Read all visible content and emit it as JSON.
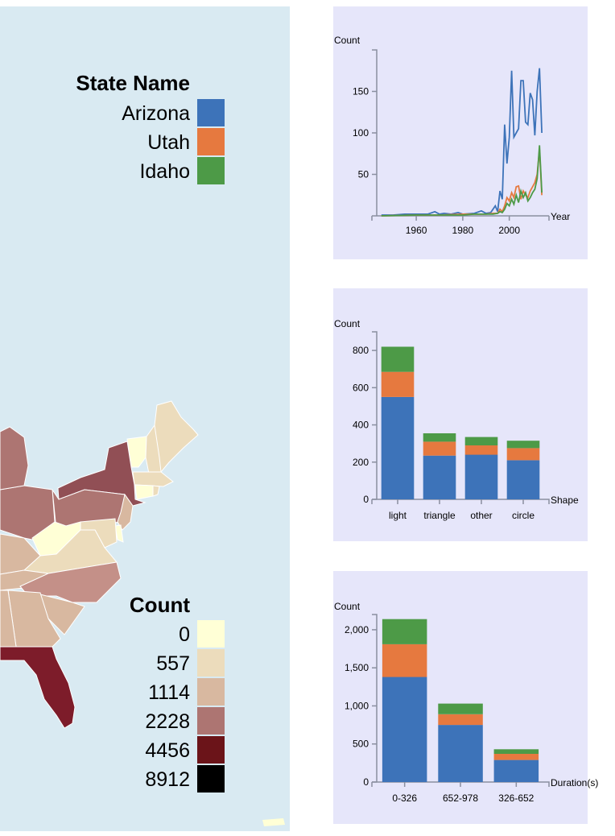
{
  "colors": {
    "map_background": "#d9eaf2",
    "chart_background": "#e6e6fa",
    "axis": "#8a8fa0",
    "series": [
      "#3d73b9",
      "#e6793f",
      "#4d9a47"
    ]
  },
  "state_legend": {
    "title": "State Name",
    "items": [
      {
        "label": "Arizona",
        "color": "#3d73b9"
      },
      {
        "label": "Utah",
        "color": "#e6793f"
      },
      {
        "label": "Idaho",
        "color": "#4d9a47"
      }
    ]
  },
  "count_legend": {
    "title": "Count",
    "items": [
      {
        "label": "0",
        "color": "#ffffd6"
      },
      {
        "label": "557",
        "color": "#ecdcbc"
      },
      {
        "label": "1114",
        "color": "#d8b8a0"
      },
      {
        "label": "2228",
        "color": "#ad7572"
      },
      {
        "label": "4456",
        "color": "#6b1419"
      },
      {
        "label": "8912",
        "color": "#000000"
      }
    ]
  },
  "chart_data": [
    {
      "type": "line",
      "ylabel": "Count",
      "xlabel": "Year",
      "xlim": [
        1943,
        2015
      ],
      "ylim": [
        0,
        200
      ],
      "xticks": [
        1960,
        1980,
        2000
      ],
      "yticks": [
        50,
        100,
        150
      ],
      "series": [
        {
          "name": "Arizona",
          "color": "#3d73b9",
          "x": [
            1945,
            1950,
            1955,
            1960,
            1965,
            1968,
            1970,
            1972,
            1975,
            1978,
            1980,
            1985,
            1988,
            1990,
            1992,
            1994,
            1995,
            1996,
            1997,
            1998,
            1999,
            2000,
            2001,
            2002,
            2003,
            2004,
            2005,
            2006,
            2007,
            2008,
            2009,
            2010,
            2011,
            2012,
            2013,
            2014
          ],
          "y": [
            1,
            1,
            2,
            2,
            2,
            5,
            2,
            3,
            2,
            4,
            2,
            3,
            6,
            3,
            4,
            12,
            5,
            30,
            20,
            110,
            63,
            95,
            175,
            95,
            100,
            105,
            163,
            163,
            113,
            110,
            148,
            140,
            97,
            150,
            178,
            100
          ]
        },
        {
          "name": "Utah",
          "color": "#e6793f",
          "x": [
            1945,
            1960,
            1970,
            1980,
            1985,
            1990,
            1993,
            1995,
            1996,
            1997,
            1998,
            1999,
            2000,
            2001,
            2002,
            2003,
            2004,
            2005,
            2006,
            2007,
            2008,
            2009,
            2010,
            2011,
            2012,
            2013,
            2014
          ],
          "y": [
            0,
            1,
            1,
            2,
            2,
            2,
            3,
            3,
            8,
            5,
            12,
            22,
            18,
            28,
            22,
            35,
            36,
            20,
            30,
            25,
            22,
            30,
            35,
            40,
            50,
            80,
            25
          ]
        },
        {
          "name": "Idaho",
          "color": "#4d9a47",
          "x": [
            1945,
            1960,
            1970,
            1980,
            1985,
            1990,
            1993,
            1995,
            1996,
            1997,
            1998,
            1999,
            2000,
            2001,
            2002,
            2003,
            2004,
            2005,
            2006,
            2007,
            2008,
            2009,
            2010,
            2011,
            2012,
            2013,
            2014
          ],
          "y": [
            0,
            1,
            1,
            1,
            2,
            2,
            2,
            3,
            5,
            4,
            8,
            15,
            12,
            20,
            14,
            25,
            16,
            30,
            22,
            28,
            18,
            22,
            28,
            32,
            45,
            85,
            28
          ]
        }
      ]
    },
    {
      "type": "bar",
      "stacked": true,
      "ylabel": "Count",
      "xlabel": "Shape",
      "ylim": [
        0,
        900
      ],
      "yticks": [
        0,
        200,
        400,
        600,
        800
      ],
      "ytick_labels": [
        "0",
        "200",
        "400",
        "600",
        "800"
      ],
      "categories": [
        "light",
        "triangle",
        "other",
        "circle"
      ],
      "series": [
        {
          "name": "Arizona",
          "color": "#3d73b9",
          "values": [
            550,
            235,
            240,
            210
          ]
        },
        {
          "name": "Utah",
          "color": "#e6793f",
          "values": [
            135,
            75,
            50,
            65
          ]
        },
        {
          "name": "Idaho",
          "color": "#4d9a47",
          "values": [
            135,
            45,
            45,
            40
          ]
        }
      ]
    },
    {
      "type": "bar",
      "stacked": true,
      "ylabel": "Count",
      "xlabel": "Duration(s)",
      "ylim": [
        0,
        2200
      ],
      "yticks": [
        0,
        500,
        1000,
        1500,
        2000
      ],
      "ytick_labels": [
        "0",
        "500",
        "1,000",
        "1,500",
        "2,000"
      ],
      "categories": [
        "0-326",
        "652-978",
        "326-652"
      ],
      "series": [
        {
          "name": "Arizona",
          "color": "#3d73b9",
          "values": [
            1380,
            750,
            290
          ]
        },
        {
          "name": "Utah",
          "color": "#e6793f",
          "values": [
            430,
            140,
            80
          ]
        },
        {
          "name": "Idaho",
          "color": "#4d9a47",
          "values": [
            330,
            140,
            60
          ]
        }
      ]
    }
  ]
}
